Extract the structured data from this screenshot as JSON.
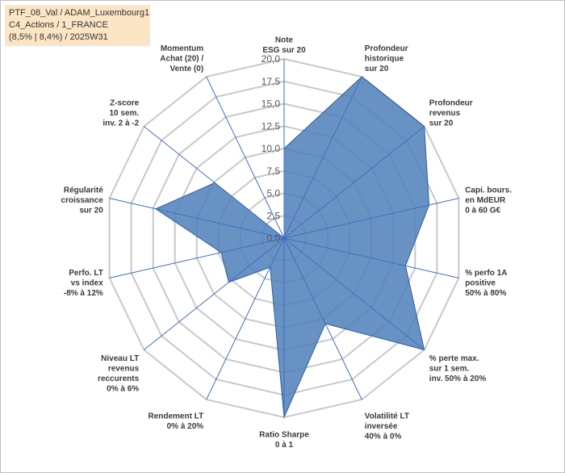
{
  "info_box": {
    "line1": "PTF_08_Val / ADAM_Luxembourg1",
    "line2": "C4_Actions / 1_FRANCE",
    "line3": "(8,5% | 8,4%) / 2025W31"
  },
  "colors": {
    "fill": "#4f7fba",
    "stroke": "#2f5c9e",
    "spoke": "#3e6fc0",
    "grid": "#c8c8c8",
    "info_bg": "#fbe5c4"
  },
  "chart_data": {
    "type": "radar",
    "title": "",
    "rlim": [
      0,
      20
    ],
    "tick_values": [
      0,
      2.5,
      5,
      7.5,
      10,
      12.5,
      15,
      17.5,
      20
    ],
    "tick_labels": [
      "0,0",
      "2,5",
      "5,0",
      "7,5",
      "10,0",
      "12,5",
      "15,0",
      "17,5",
      "20,0"
    ],
    "grid": true,
    "axes": [
      {
        "label": [
          "Note",
          "ESG sur 20"
        ],
        "value": 10
      },
      {
        "label": [
          "Profondeur",
          "historique",
          "sur 20"
        ],
        "value": 20
      },
      {
        "label": [
          "Profondeur",
          "revenus",
          "sur 20"
        ],
        "value": 20
      },
      {
        "label": [
          "Capi. bours.",
          "en MdEUR",
          "0 à 60 G€"
        ],
        "value": 16.6
      },
      {
        "label": [
          "% perfo 1A",
          "positive",
          "50% à 80%"
        ],
        "value": 13.9
      },
      {
        "label": [
          "% perte max.",
          "sur 1 sem.",
          "inv. 50% à 20%"
        ],
        "value": 20
      },
      {
        "label": [
          "Volatilité LT",
          "inversée",
          "40% à 0%"
        ],
        "value": 10.6
      },
      {
        "label": [
          "Ratio Sharpe",
          "0 à 1"
        ],
        "value": 20
      },
      {
        "label": [
          "Rendement LT",
          "0% à 20%"
        ],
        "value": 3.6
      },
      {
        "label": [
          "Niveau LT",
          "revenus",
          "reccurents",
          "0% à 6%"
        ],
        "value": 7.9
      },
      {
        "label": [
          "Perfo. LT",
          "vs index",
          "-8% à 12%"
        ],
        "value": 7.2
      },
      {
        "label": [
          "Régularité",
          "croissance",
          "sur 20"
        ],
        "value": 14.7
      },
      {
        "label": [
          "Z-score",
          "10 sem.",
          "inv. 2 à -2"
        ],
        "value": 9.9
      },
      {
        "label": [
          "Momentum",
          "Achat (20) /",
          "Vente (0)"
        ],
        "value": 0
      }
    ]
  }
}
